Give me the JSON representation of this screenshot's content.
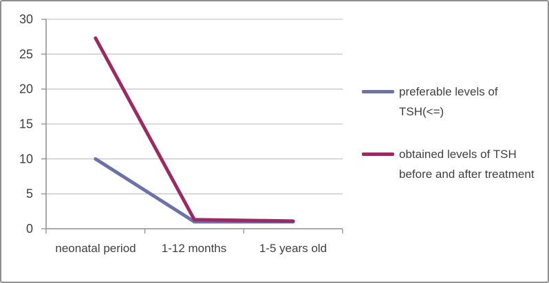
{
  "chart_data": {
    "type": "line",
    "title": "",
    "xlabel": "",
    "ylabel": "",
    "categories": [
      "neonatal period",
      "1-12 months",
      "1-5 years old"
    ],
    "series": [
      {
        "name": "preferable levels of TSH(<=)",
        "color": "#6a72a7",
        "values": [
          10,
          1,
          1
        ]
      },
      {
        "name": "obtained levels of TSH before and after treatment",
        "color": "#9a2b62",
        "values": [
          27.3,
          1.3,
          1.1
        ]
      }
    ],
    "ylim": [
      0,
      30
    ],
    "yticks": [
      0,
      5,
      10,
      15,
      20,
      25,
      30
    ],
    "grid": true,
    "legend_position": "right"
  },
  "colors": {
    "background": "#ffffff",
    "border": "#8f8f8f",
    "gridline": "#c6c6c6",
    "axis": "#8e8e8e",
    "text": "#3f3f3f"
  }
}
